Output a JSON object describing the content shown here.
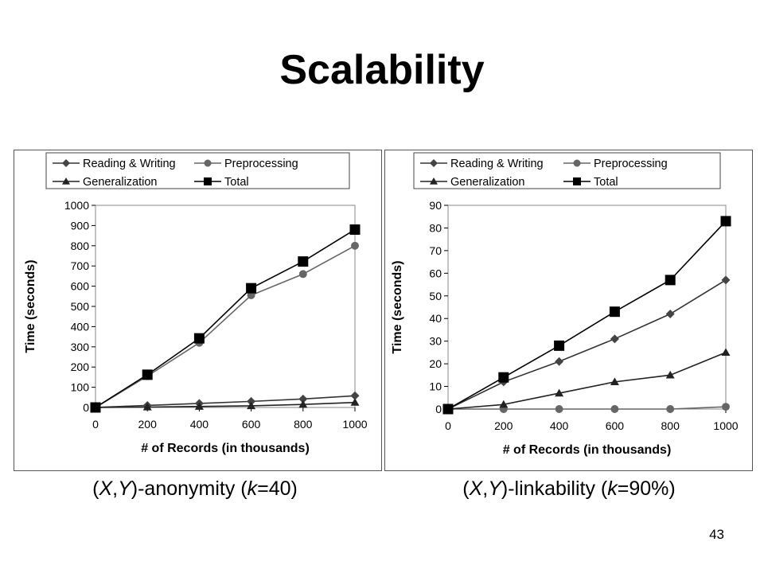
{
  "slide": {
    "title": "Scalability",
    "page_number": "43"
  },
  "captions": [
    {
      "pre": "(",
      "x": "X",
      "comma": ",",
      "y": "Y",
      "mid": ")-anonymity (",
      "k": "k",
      "post": "=40)"
    },
    {
      "pre": "(",
      "x": "X",
      "comma": ",",
      "y": "Y",
      "mid": ")-linkability (",
      "k": "k",
      "post": "=90%)"
    }
  ],
  "chart_data": [
    {
      "type": "line",
      "xlabel": "# of Records (in thousands)",
      "ylabel": "Time (seconds)",
      "x": [
        0,
        200,
        400,
        600,
        800,
        1000
      ],
      "xlim": [
        0,
        1000
      ],
      "ylim": [
        0,
        1000
      ],
      "yticks": [
        0,
        100,
        200,
        300,
        400,
        500,
        600,
        700,
        800,
        900,
        1000
      ],
      "xticks": [
        0,
        200,
        400,
        600,
        800,
        1000
      ],
      "legend_position": "top",
      "series": [
        {
          "name": "Reading & Writing",
          "marker": "diamond",
          "values": [
            0,
            10,
            20,
            30,
            42,
            58
          ]
        },
        {
          "name": "Preprocessing",
          "marker": "circle",
          "values": [
            0,
            155,
            320,
            555,
            660,
            800
          ]
        },
        {
          "name": "Generalization",
          "marker": "triangle",
          "values": [
            0,
            2,
            5,
            8,
            15,
            25
          ]
        },
        {
          "name": "Total",
          "marker": "square",
          "values": [
            0,
            162,
            342,
            590,
            722,
            880
          ]
        }
      ]
    },
    {
      "type": "line",
      "xlabel": "# of Records (in thousands)",
      "ylabel": "Time (seconds)",
      "x": [
        0,
        200,
        400,
        600,
        800,
        1000
      ],
      "xlim": [
        0,
        1000
      ],
      "ylim": [
        0,
        90
      ],
      "yticks": [
        0,
        10,
        20,
        30,
        40,
        50,
        60,
        70,
        80,
        90
      ],
      "xticks": [
        0,
        200,
        400,
        600,
        800,
        1000
      ],
      "legend_position": "top",
      "series": [
        {
          "name": "Reading & Writing",
          "marker": "diamond",
          "values": [
            0,
            12,
            21,
            31,
            42,
            57
          ]
        },
        {
          "name": "Preprocessing",
          "marker": "circle",
          "values": [
            0,
            0,
            0,
            0,
            0,
            1
          ]
        },
        {
          "name": "Generalization",
          "marker": "triangle",
          "values": [
            0,
            2,
            7,
            12,
            15,
            25
          ]
        },
        {
          "name": "Total",
          "marker": "square",
          "values": [
            0,
            14,
            28,
            43,
            57,
            83
          ]
        }
      ]
    }
  ]
}
